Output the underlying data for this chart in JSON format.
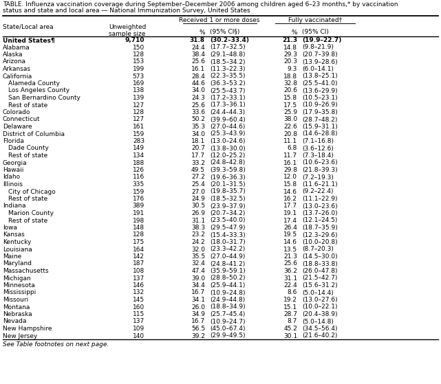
{
  "title_line1": "TABLE. Influenza vaccination coverage during September–December 2006 among children aged 6–23 months,* by vaccination",
  "title_line2": "status and state and local area — National Immunization Survey, United States",
  "footnote": "See Table footnotes on next page.",
  "group_header1": "Received 1 or more doses",
  "group_header2": "Fully vaccinated†",
  "col_header_state": "State/Local area",
  "col_header_sample": "Unweighted\nsample size",
  "col_header_pct1": "%",
  "col_header_ci1": "(95% CI§)",
  "col_header_pct2": "%",
  "col_header_ci2": "(95% CI)",
  "rows": [
    {
      "name": "United States¶",
      "sample": "9,710",
      "pct1": "31.8",
      "ci1": "(30.2–33.4)",
      "pct2": "21.3",
      "ci2": "(19.9–22.7)",
      "bold": true,
      "indent": false
    },
    {
      "name": "Alabama",
      "sample": "150",
      "pct1": "24.4",
      "ci1": "(17.7–32.5)",
      "pct2": "14.8",
      "ci2": "(9.8–21.9)",
      "bold": false,
      "indent": false
    },
    {
      "name": "Alaska",
      "sample": "128",
      "pct1": "38.4",
      "ci1": "(29.1–48.8)",
      "pct2": "29.3",
      "ci2": "(20.7–39.8)",
      "bold": false,
      "indent": false
    },
    {
      "name": "Arizona",
      "sample": "153",
      "pct1": "25.6",
      "ci1": "(18.5–34.2)",
      "pct2": "20.3",
      "ci2": "(13.9–28.6)",
      "bold": false,
      "indent": false
    },
    {
      "name": "Arkansas",
      "sample": "199",
      "pct1": "16.1",
      "ci1": "(11.3–22.3)",
      "pct2": "9.3",
      "ci2": "(6.0–14.1)",
      "bold": false,
      "indent": false
    },
    {
      "name": "California",
      "sample": "573",
      "pct1": "28.4",
      "ci1": "(22.3–35.5)",
      "pct2": "18.8",
      "ci2": "(13.8–25.1)",
      "bold": false,
      "indent": false
    },
    {
      "name": "Alameda County",
      "sample": "169",
      "pct1": "44.6",
      "ci1": "(36.3–53.2)",
      "pct2": "32.8",
      "ci2": "(25.5–41.0)",
      "bold": false,
      "indent": true
    },
    {
      "name": "Los Angeles County",
      "sample": "138",
      "pct1": "34.0",
      "ci1": "(25.5–43.7)",
      "pct2": "20.6",
      "ci2": "(13.6–29.9)",
      "bold": false,
      "indent": true
    },
    {
      "name": "San Bernardino County",
      "sample": "139",
      "pct1": "24.3",
      "ci1": "(17.2–33.1)",
      "pct2": "15.8",
      "ci2": "(10.5–23.1)",
      "bold": false,
      "indent": true
    },
    {
      "name": "Rest of state",
      "sample": "127",
      "pct1": "25.6",
      "ci1": "(17.3–36.1)",
      "pct2": "17.5",
      "ci2": "(10.9–26.9)",
      "bold": false,
      "indent": true
    },
    {
      "name": "Colorado",
      "sample": "128",
      "pct1": "33.6",
      "ci1": "(24.4–44.3)",
      "pct2": "25.9",
      "ci2": "(17.9–35.8)",
      "bold": false,
      "indent": false
    },
    {
      "name": "Connecticut",
      "sample": "127",
      "pct1": "50.2",
      "ci1": "(39.9–60.4)",
      "pct2": "38.0",
      "ci2": "(28.7–48.2)",
      "bold": false,
      "indent": false
    },
    {
      "name": "Delaware",
      "sample": "161",
      "pct1": "35.3",
      "ci1": "(27.0–44.6)",
      "pct2": "22.6",
      "ci2": "(15.9–31.1)",
      "bold": false,
      "indent": false
    },
    {
      "name": "District of Columbia",
      "sample": "159",
      "pct1": "34.0",
      "ci1": "(25.3–43.9)",
      "pct2": "20.8",
      "ci2": "(14.6–28.8)",
      "bold": false,
      "indent": false
    },
    {
      "name": "Florida",
      "sample": "283",
      "pct1": "18.1",
      "ci1": "(13.0–24.6)",
      "pct2": "11.1",
      "ci2": "(7.1–16.8)",
      "bold": false,
      "indent": false
    },
    {
      "name": "Dade County",
      "sample": "149",
      "pct1": "20.7",
      "ci1": "(13.8–30.0)",
      "pct2": "6.8",
      "ci2": "(3.6–12.6)",
      "bold": false,
      "indent": true
    },
    {
      "name": "Rest of state",
      "sample": "134",
      "pct1": "17.7",
      "ci1": "(12.0–25.2)",
      "pct2": "11.7",
      "ci2": "(7.3–18.4)",
      "bold": false,
      "indent": true
    },
    {
      "name": "Georgia",
      "sample": "188",
      "pct1": "33.2",
      "ci1": "(24.8–42.8)",
      "pct2": "16.1",
      "ci2": "(10.6–23.6)",
      "bold": false,
      "indent": false
    },
    {
      "name": "Hawaii",
      "sample": "126",
      "pct1": "49.5",
      "ci1": "(39.3–59.8)",
      "pct2": "29.8",
      "ci2": "(21.8–39.3)",
      "bold": false,
      "indent": false
    },
    {
      "name": "Idaho",
      "sample": "116",
      "pct1": "27.2",
      "ci1": "(19.6–36.3)",
      "pct2": "12.0",
      "ci2": "(7.2–19.3)",
      "bold": false,
      "indent": false
    },
    {
      "name": "Illinois",
      "sample": "335",
      "pct1": "25.4",
      "ci1": "(20.1–31.5)",
      "pct2": "15.8",
      "ci2": "(11.6–21.1)",
      "bold": false,
      "indent": false
    },
    {
      "name": "City of Chicago",
      "sample": "159",
      "pct1": "27.0",
      "ci1": "(19.8–35.7)",
      "pct2": "14.6",
      "ci2": "(9.2–22.4)",
      "bold": false,
      "indent": true
    },
    {
      "name": "Rest of state",
      "sample": "176",
      "pct1": "24.9",
      "ci1": "(18.5–32.5)",
      "pct2": "16.2",
      "ci2": "(11.1–22.9)",
      "bold": false,
      "indent": true
    },
    {
      "name": "Indiana",
      "sample": "389",
      "pct1": "30.5",
      "ci1": "(23.9–37.9)",
      "pct2": "17.7",
      "ci2": "(13.0–23.6)",
      "bold": false,
      "indent": false
    },
    {
      "name": "Marion County",
      "sample": "191",
      "pct1": "26.9",
      "ci1": "(20.7–34.2)",
      "pct2": "19.1",
      "ci2": "(13.7–26.0)",
      "bold": false,
      "indent": true
    },
    {
      "name": "Rest of state",
      "sample": "198",
      "pct1": "31.1",
      "ci1": "(23.5–40.0)",
      "pct2": "17.4",
      "ci2": "(12.1–24.5)",
      "bold": false,
      "indent": true
    },
    {
      "name": "Iowa",
      "sample": "148",
      "pct1": "38.3",
      "ci1": "(29.5–47.9)",
      "pct2": "26.4",
      "ci2": "(18.7–35.9)",
      "bold": false,
      "indent": false
    },
    {
      "name": "Kansas",
      "sample": "128",
      "pct1": "23.2",
      "ci1": "(15.4–33.3)",
      "pct2": "19.5",
      "ci2": "(12.3–29.6)",
      "bold": false,
      "indent": false
    },
    {
      "name": "Kentucky",
      "sample": "175",
      "pct1": "24.2",
      "ci1": "(18.0–31.7)",
      "pct2": "14.6",
      "ci2": "(10.0–20.8)",
      "bold": false,
      "indent": false
    },
    {
      "name": "Louisiana",
      "sample": "164",
      "pct1": "32.0",
      "ci1": "(23.3–42.2)",
      "pct2": "13.5",
      "ci2": "(8.7–20.3)",
      "bold": false,
      "indent": false
    },
    {
      "name": "Maine",
      "sample": "142",
      "pct1": "35.5",
      "ci1": "(27.0–44.9)",
      "pct2": "21.3",
      "ci2": "(14.5–30.0)",
      "bold": false,
      "indent": false
    },
    {
      "name": "Maryland",
      "sample": "187",
      "pct1": "32.4",
      "ci1": "(24.8–41.2)",
      "pct2": "25.6",
      "ci2": "(18.8–33.8)",
      "bold": false,
      "indent": false
    },
    {
      "name": "Massachusetts",
      "sample": "108",
      "pct1": "47.4",
      "ci1": "(35.9–59.1)",
      "pct2": "36.2",
      "ci2": "(26.0–47.8)",
      "bold": false,
      "indent": false
    },
    {
      "name": "Michigan",
      "sample": "137",
      "pct1": "39.0",
      "ci1": "(28.8–50.2)",
      "pct2": "31.1",
      "ci2": "(21.5–42.7)",
      "bold": false,
      "indent": false
    },
    {
      "name": "Minnesota",
      "sample": "146",
      "pct1": "34.4",
      "ci1": "(25.9–44.1)",
      "pct2": "22.4",
      "ci2": "(15.6–31.2)",
      "bold": false,
      "indent": false
    },
    {
      "name": "Mississippi",
      "sample": "132",
      "pct1": "16.7",
      "ci1": "(10.9–24.8)",
      "pct2": "8.6",
      "ci2": "(5.0–14.4)",
      "bold": false,
      "indent": false
    },
    {
      "name": "Missouri",
      "sample": "145",
      "pct1": "34.1",
      "ci1": "(24.9–44.8)",
      "pct2": "19.2",
      "ci2": "(13.0–27.6)",
      "bold": false,
      "indent": false
    },
    {
      "name": "Montana",
      "sample": "160",
      "pct1": "26.0",
      "ci1": "(18.8–34.9)",
      "pct2": "15.1",
      "ci2": "(10.0–22.1)",
      "bold": false,
      "indent": false
    },
    {
      "name": "Nebraska",
      "sample": "115",
      "pct1": "34.9",
      "ci1": "(25.7–45.4)",
      "pct2": "28.7",
      "ci2": "(20.4–38.9)",
      "bold": false,
      "indent": false
    },
    {
      "name": "Nevada",
      "sample": "137",
      "pct1": "16.7",
      "ci1": "(10.9–24.7)",
      "pct2": "8.7",
      "ci2": "(5.0–14.8)",
      "bold": false,
      "indent": false
    },
    {
      "name": "New Hampshire",
      "sample": "109",
      "pct1": "56.5",
      "ci1": "(45.0–67.4)",
      "pct2": "45.2",
      "ci2": "(34.5–56.4)",
      "bold": false,
      "indent": false
    },
    {
      "name": "New Jersey",
      "sample": "140",
      "pct1": "39.2",
      "ci1": "(29.9–49.5)",
      "pct2": "30.1",
      "ci2": "(21.6–40.2)",
      "bold": false,
      "indent": false
    }
  ],
  "bg_color": "#ffffff",
  "text_color": "#000000",
  "title_fs": 6.5,
  "header_fs": 6.5,
  "data_fs": 6.5
}
